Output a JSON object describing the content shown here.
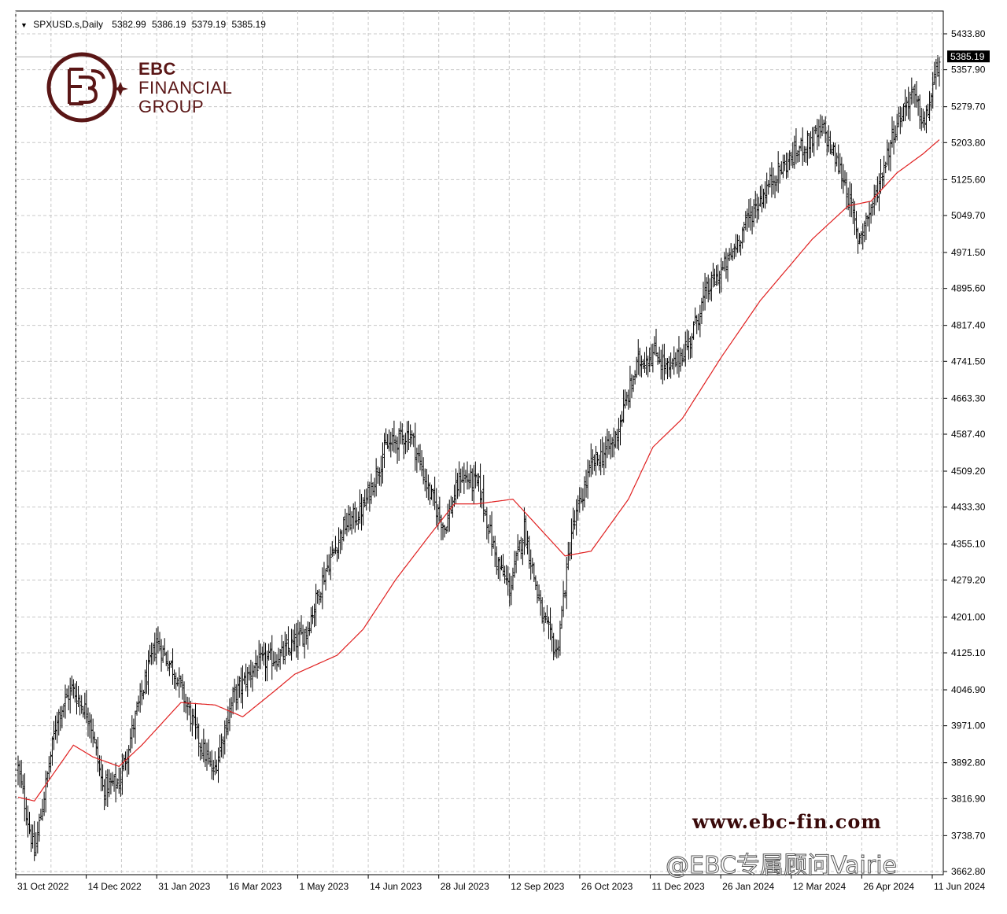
{
  "header": {
    "symbol": "SPXUSD.s,Daily",
    "open": "5382.99",
    "high": "5386.19",
    "low": "5379.19",
    "close": "5385.19"
  },
  "logo": {
    "line1": "EBC",
    "line2": "FINANCIAL",
    "line3": "GROUP",
    "color": "#5a1616"
  },
  "website": "www.ebc-fin.com",
  "watermark": "@EBC专属顾问Vairie",
  "colors": {
    "bars": "#000000",
    "ma_line": "#e02020",
    "grid": "#c8c8c8",
    "price_tag_bg": "#000000",
    "price_tag_text": "#ffffff"
  },
  "chart_data": {
    "type": "ohlc",
    "symbol": "SPXUSD.s",
    "timeframe": "Daily",
    "current_price": 5385.19,
    "current_price_label": "5385.19",
    "y_ticks": [
      "5433.80",
      "5357.90",
      "5279.70",
      "5203.80",
      "5125.60",
      "5049.70",
      "4971.50",
      "4895.60",
      "4817.40",
      "4741.50",
      "4663.30",
      "4587.40",
      "4509.20",
      "4433.30",
      "4355.10",
      "4279.20",
      "4201.00",
      "4125.10",
      "4046.90",
      "3971.00",
      "3892.80",
      "3816.90",
      "3738.70",
      "3662.80"
    ],
    "ylim": [
      3662.8,
      5433.8
    ],
    "x_ticks": [
      "31 Oct 2022",
      "14 Dec 2022",
      "31 Jan 2023",
      "16 Mar 2023",
      "1 May 2023",
      "14 Jun 2023",
      "28 Jul 2023",
      "12 Sep 2023",
      "26 Oct 2023",
      "11 Dec 2023",
      "26 Jan 2024",
      "12 Mar 2024",
      "26 Apr 2024",
      "11 Jun 2024"
    ],
    "grid": true,
    "price_close_series": {
      "dates": [
        "31 Oct 2022",
        "14 Dec 2022",
        "31 Jan 2023",
        "16 Mar 2023",
        "1 May 2023",
        "14 Jun 2023",
        "28 Jul 2023",
        "12 Sep 2023",
        "26 Oct 2023",
        "11 Dec 2023",
        "26 Jan 2024",
        "12 Mar 2024",
        "26 Apr 2024",
        "11 Jun 2024"
      ],
      "anchors": [
        {
          "x": 0,
          "y": 3880
        },
        {
          "x": 10,
          "y": 3700
        },
        {
          "x": 24,
          "y": 3990
        },
        {
          "x": 33,
          "y": 4050
        },
        {
          "x": 44,
          "y": 3990
        },
        {
          "x": 52,
          "y": 3840
        },
        {
          "x": 62,
          "y": 3850
        },
        {
          "x": 73,
          "y": 4000
        },
        {
          "x": 85,
          "y": 4150
        },
        {
          "x": 97,
          "y": 4080
        },
        {
          "x": 110,
          "y": 3950
        },
        {
          "x": 120,
          "y": 3870
        },
        {
          "x": 132,
          "y": 4030
        },
        {
          "x": 146,
          "y": 4100
        },
        {
          "x": 162,
          "y": 4120
        },
        {
          "x": 177,
          "y": 4170
        },
        {
          "x": 189,
          "y": 4300
        },
        {
          "x": 200,
          "y": 4390
        },
        {
          "x": 212,
          "y": 4430
        },
        {
          "x": 226,
          "y": 4560
        },
        {
          "x": 241,
          "y": 4590
        },
        {
          "x": 252,
          "y": 4470
        },
        {
          "x": 262,
          "y": 4390
        },
        {
          "x": 272,
          "y": 4500
        },
        {
          "x": 283,
          "y": 4480
        },
        {
          "x": 294,
          "y": 4320
        },
        {
          "x": 302,
          "y": 4260
        },
        {
          "x": 311,
          "y": 4390
        },
        {
          "x": 322,
          "y": 4200
        },
        {
          "x": 331,
          "y": 4125
        },
        {
          "x": 340,
          "y": 4380
        },
        {
          "x": 352,
          "y": 4520
        },
        {
          "x": 366,
          "y": 4570
        },
        {
          "x": 381,
          "y": 4740
        },
        {
          "x": 392,
          "y": 4760
        },
        {
          "x": 400,
          "y": 4720
        },
        {
          "x": 412,
          "y": 4780
        },
        {
          "x": 423,
          "y": 4890
        },
        {
          "x": 436,
          "y": 4950
        },
        {
          "x": 448,
          "y": 5040
        },
        {
          "x": 464,
          "y": 5130
        },
        {
          "x": 480,
          "y": 5190
        },
        {
          "x": 495,
          "y": 5230
        },
        {
          "x": 508,
          "y": 5120
        },
        {
          "x": 516,
          "y": 5000
        },
        {
          "x": 526,
          "y": 5080
        },
        {
          "x": 538,
          "y": 5230
        },
        {
          "x": 549,
          "y": 5310
        },
        {
          "x": 557,
          "y": 5240
        },
        {
          "x": 566,
          "y": 5385
        }
      ]
    },
    "moving_average": {
      "name": "",
      "anchors": [
        {
          "x": 0,
          "y": 3820
        },
        {
          "x": 10,
          "y": 3812
        },
        {
          "x": 34,
          "y": 3930
        },
        {
          "x": 46,
          "y": 3905
        },
        {
          "x": 62,
          "y": 3885
        },
        {
          "x": 76,
          "y": 3930
        },
        {
          "x": 100,
          "y": 4020
        },
        {
          "x": 121,
          "y": 4015
        },
        {
          "x": 138,
          "y": 3990
        },
        {
          "x": 156,
          "y": 4040
        },
        {
          "x": 170,
          "y": 4080
        },
        {
          "x": 196,
          "y": 4120
        },
        {
          "x": 212,
          "y": 4175
        },
        {
          "x": 232,
          "y": 4280
        },
        {
          "x": 252,
          "y": 4370
        },
        {
          "x": 268,
          "y": 4440
        },
        {
          "x": 282,
          "y": 4440
        },
        {
          "x": 304,
          "y": 4450
        },
        {
          "x": 320,
          "y": 4390
        },
        {
          "x": 336,
          "y": 4330
        },
        {
          "x": 352,
          "y": 4340
        },
        {
          "x": 375,
          "y": 4450
        },
        {
          "x": 390,
          "y": 4560
        },
        {
          "x": 408,
          "y": 4620
        },
        {
          "x": 432,
          "y": 4750
        },
        {
          "x": 456,
          "y": 4870
        },
        {
          "x": 488,
          "y": 5000
        },
        {
          "x": 510,
          "y": 5070
        },
        {
          "x": 524,
          "y": 5080
        },
        {
          "x": 540,
          "y": 5140
        },
        {
          "x": 556,
          "y": 5180
        },
        {
          "x": 566,
          "y": 5210
        }
      ]
    }
  }
}
